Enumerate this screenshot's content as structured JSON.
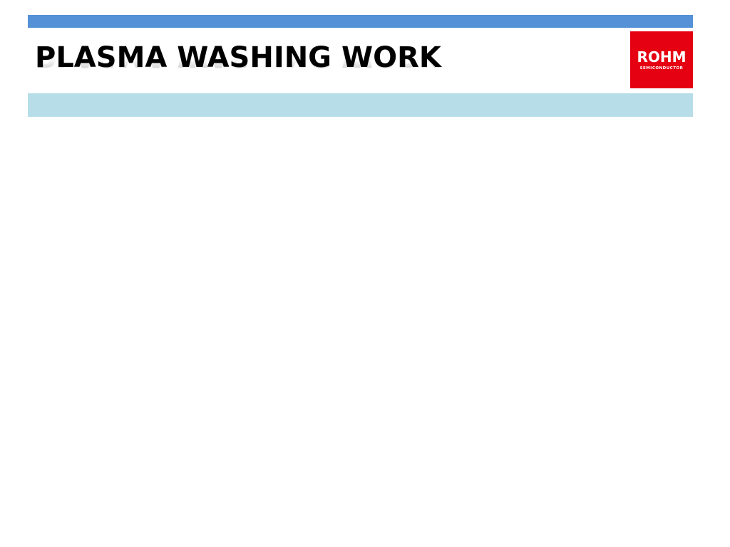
{
  "slide": {
    "title": "PLASMA WASHING WORK",
    "logo": {
      "name": "ROHM",
      "tagline": "SEMICONDUCTOR"
    },
    "subtitle": ""
  },
  "colors": {
    "top_bar": "#5591d6",
    "subtitle_band": "#b7dee8",
    "logo_bg": "#e50012",
    "title_text": "#000000"
  }
}
